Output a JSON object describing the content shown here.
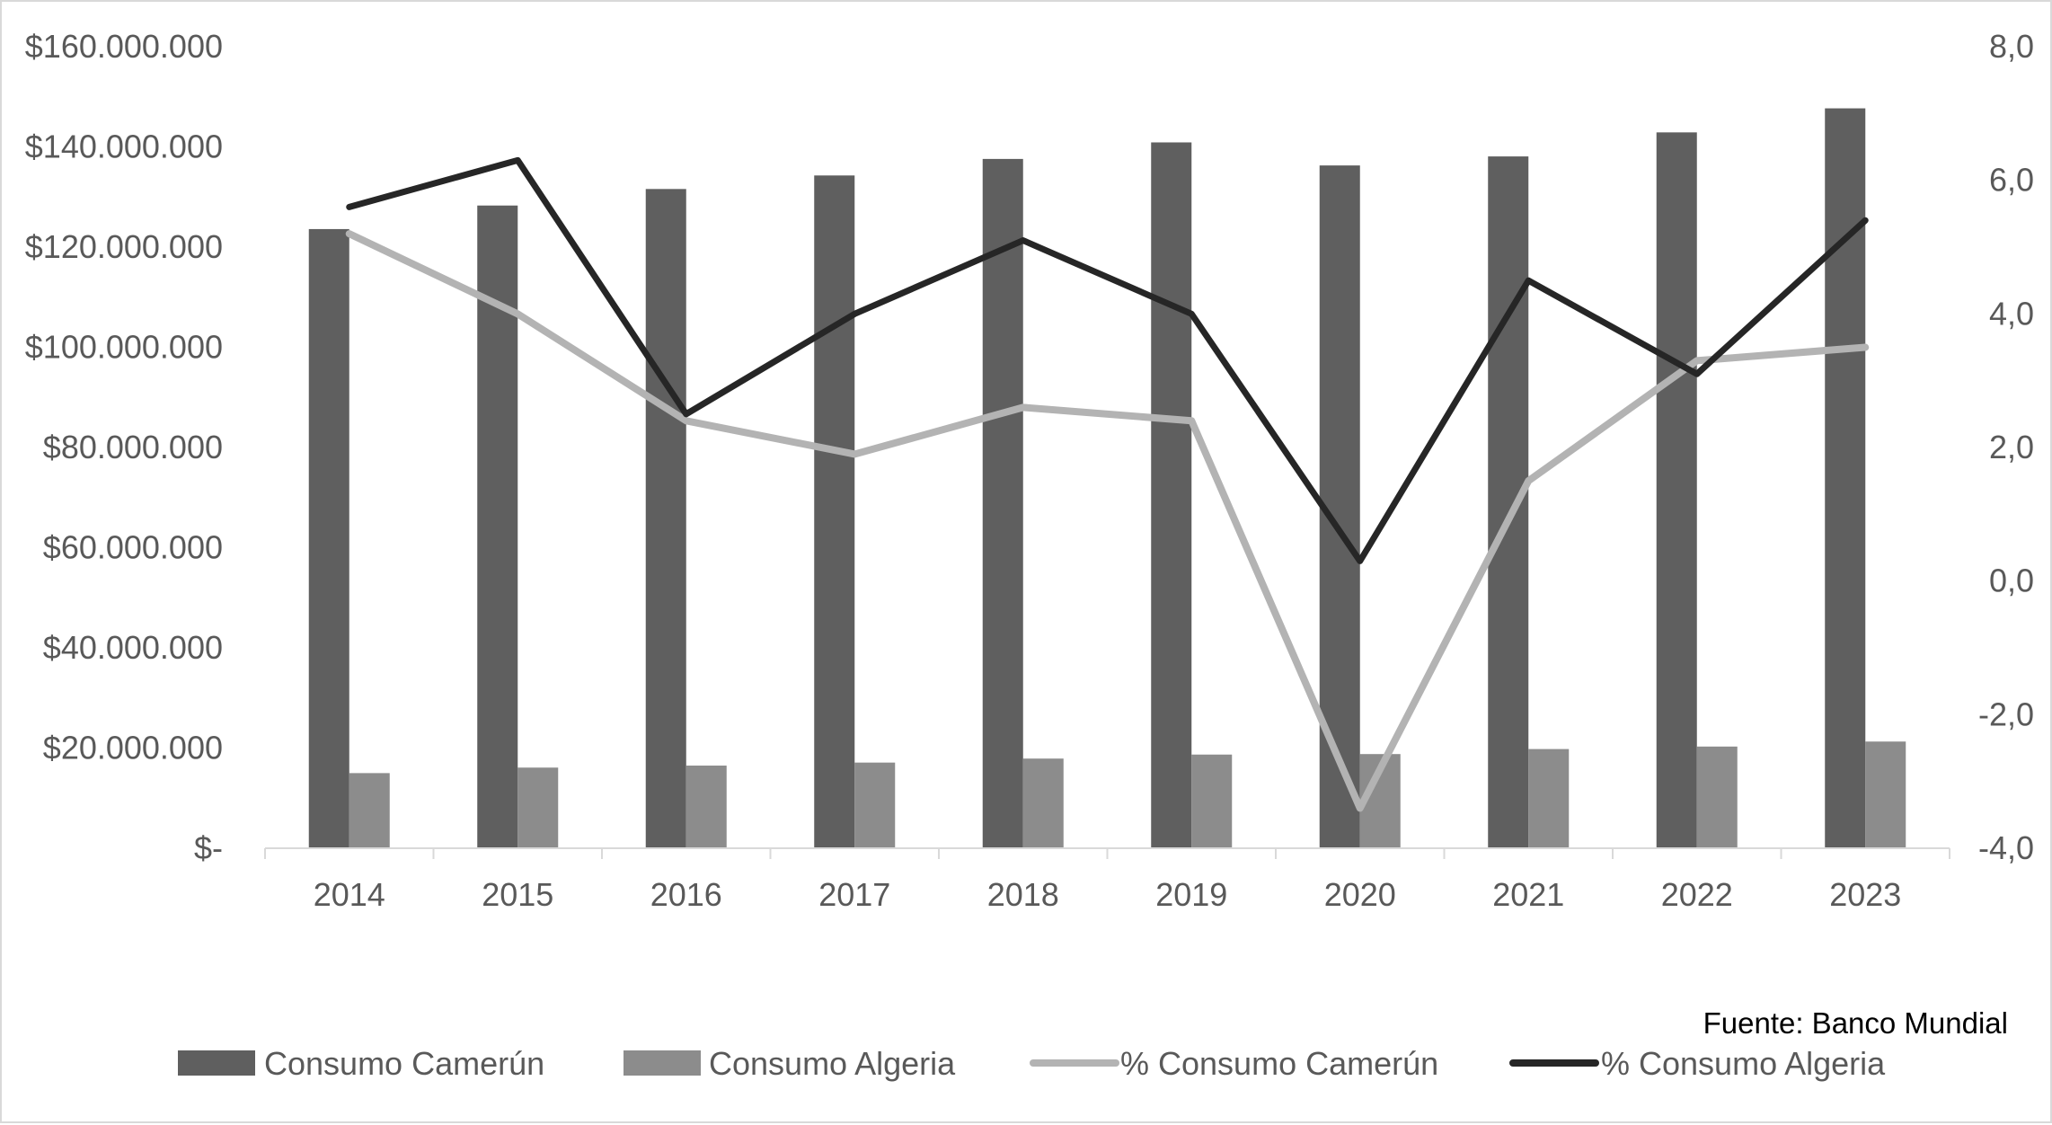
{
  "chart_data": {
    "type": "bar",
    "title": "",
    "xlabel": "",
    "ylabel": "",
    "y2label": "",
    "categories": [
      "2014",
      "2015",
      "2016",
      "2017",
      "2018",
      "2019",
      "2020",
      "2021",
      "2022",
      "2023"
    ],
    "ylim": [
      0,
      160000000
    ],
    "y2lim": [
      -4,
      8
    ],
    "y_ticks": [
      {
        "value": 0,
        "label": "$-"
      },
      {
        "value": 20000000,
        "label": "$20.000.000"
      },
      {
        "value": 40000000,
        "label": "$40.000.000"
      },
      {
        "value": 60000000,
        "label": "$60.000.000"
      },
      {
        "value": 80000000,
        "label": "$80.000.000"
      },
      {
        "value": 100000000,
        "label": "$100.000.000"
      },
      {
        "value": 120000000,
        "label": "$120.000.000"
      },
      {
        "value": 140000000,
        "label": "$140.000.000"
      },
      {
        "value": 160000000,
        "label": "$160.000.000"
      }
    ],
    "y2_ticks": [
      {
        "value": -4,
        "label": "-4,0"
      },
      {
        "value": -2,
        "label": "-2,0"
      },
      {
        "value": 0,
        "label": "0,0"
      },
      {
        "value": 2,
        "label": "2,0"
      },
      {
        "value": 4,
        "label": "4,0"
      },
      {
        "value": 6,
        "label": "6,0"
      },
      {
        "value": 8,
        "label": "8,0"
      }
    ],
    "grid": false,
    "legend_position": "bottom",
    "series": [
      {
        "name": "Consumo Camerún",
        "kind": "bar",
        "axis": "left",
        "color": "#5f5f5f",
        "values": [
          123600000,
          128300000,
          131600000,
          134300000,
          137600000,
          140900000,
          136300000,
          138100000,
          142900000,
          147700000
        ]
      },
      {
        "name": "Consumo Algeria",
        "kind": "bar",
        "axis": "left",
        "color": "#8c8c8c",
        "values": [
          15000000,
          16100000,
          16500000,
          17100000,
          17900000,
          18700000,
          18800000,
          19800000,
          20300000,
          21300000
        ]
      },
      {
        "name": "% Consumo Camerún",
        "kind": "line",
        "axis": "right",
        "color": "#b3b3b3",
        "values": [
          5.2,
          4.0,
          2.4,
          1.9,
          2.6,
          2.4,
          -3.4,
          1.5,
          3.3,
          3.5
        ]
      },
      {
        "name": "% Consumo Algeria",
        "kind": "line",
        "axis": "right",
        "color": "#262626",
        "values": [
          5.6,
          6.3,
          2.5,
          4.0,
          5.1,
          4.0,
          0.3,
          4.5,
          3.1,
          5.4
        ]
      }
    ],
    "source": "Fuente: Banco Mundial"
  }
}
